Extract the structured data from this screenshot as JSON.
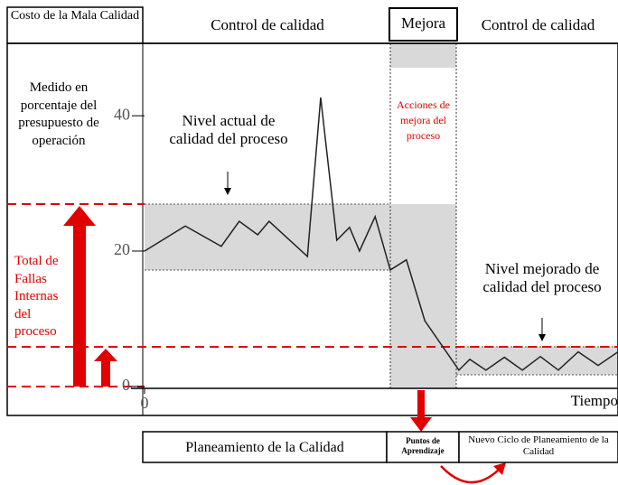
{
  "chart_data": {
    "type": "line",
    "headers": [
      "Costo de la Mala Calidad",
      "Control de calidad",
      "Mejora",
      "Control de calidad"
    ],
    "ylabel": "Medido en porcentaje del presupuesto de operación",
    "xlabel": "Tiempo",
    "annotations": [
      "Nivel actual de calidad del proceso",
      "Acciones de mejora del proceso",
      "Nivel mejorado de calidad del proceso",
      "Total de Fallas Internas del proceso"
    ],
    "bottom_boxes": [
      "Planeamiento de la Calidad",
      "Puntos de Aprendizaje",
      "Nuevo Ciclo de Planeamiento de la Calidad"
    ],
    "x": [
      0,
      8.6,
      16.2,
      20.0,
      23.9,
      26.3,
      34.4,
      37.2,
      40.6,
      43.3,
      45.4,
      48.7,
      51.9,
      55.3,
      59.2,
      66.4,
      68.7,
      72.1,
      76.0,
      79.8,
      83.6,
      87.4,
      91.6,
      95.8,
      100
    ],
    "series": [
      {
        "color": "#222222",
        "values": [
          20,
          23.7,
          20.7,
          24.4,
          22.4,
          24.4,
          19.2,
          42.7,
          21.6,
          23.5,
          20,
          25.1,
          17.2,
          18.7,
          9.7,
          2.4,
          4.0,
          2.4,
          4.3,
          2.4,
          4.4,
          2.4,
          5.1,
          3.1,
          5.1
        ]
      }
    ],
    "xlim": [
      0,
      100
    ],
    "xticks": [
      0
    ],
    "ylim": [
      -4.3,
      50.7
    ],
    "yticks": [
      0,
      20,
      40
    ]
  }
}
